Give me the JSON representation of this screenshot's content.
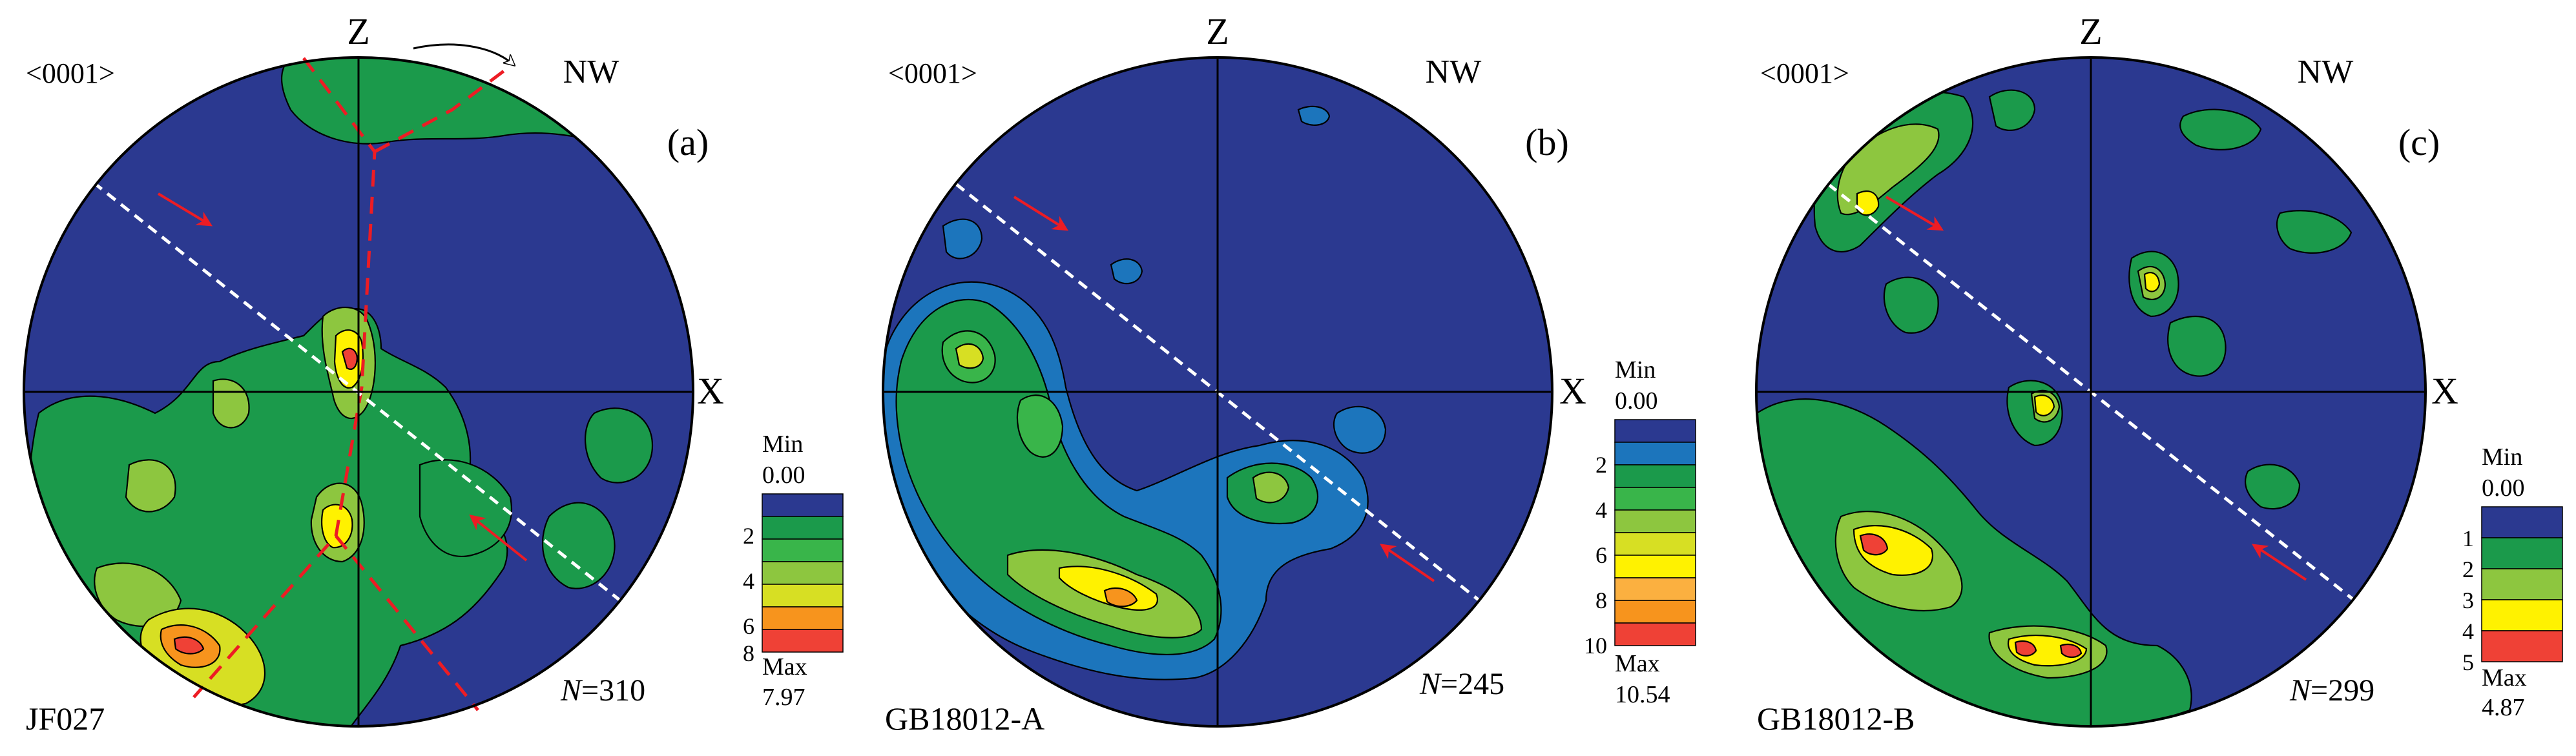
{
  "panels": [
    {
      "id": "a",
      "panel_label": "(a)",
      "crystal_axis": "<0001>",
      "axis_top": "Z",
      "axis_right": "X",
      "direction": "NW",
      "sample": "JF027",
      "n_value": "=310",
      "legend": {
        "min_label": "Min",
        "min_value": "0.00",
        "max_label": "Max",
        "max_value": "7.97",
        "ticks": [
          "2",
          "4",
          "6",
          "8"
        ],
        "colors": [
          "#2b3990",
          "#1b9a4b",
          "#39b54a",
          "#8dc63f",
          "#d7df23",
          "#f7941d",
          "#ef4136"
        ]
      },
      "has_girdle_trace": true,
      "has_top_shear_arrow": true
    },
    {
      "id": "b",
      "panel_label": "(b)",
      "crystal_axis": "<0001>",
      "axis_top": "Z",
      "axis_right": "X",
      "direction": "NW",
      "sample": "GB18012-A",
      "n_value": "=245",
      "legend": {
        "min_label": "Min",
        "min_value": "0.00",
        "max_label": "Max",
        "max_value": "10.54",
        "ticks": [
          "2",
          "4",
          "6",
          "8",
          "10"
        ],
        "colors": [
          "#2b3990",
          "#1c75bc",
          "#1b9a4b",
          "#39b54a",
          "#8dc63f",
          "#d7df23",
          "#fff200",
          "#fbb040",
          "#f7941d",
          "#ef4136"
        ]
      },
      "has_girdle_trace": false,
      "has_top_shear_arrow": false
    },
    {
      "id": "c",
      "panel_label": "(c)",
      "crystal_axis": "<0001>",
      "axis_top": "Z",
      "axis_right": "X",
      "direction": "NW",
      "sample": "GB18012-B",
      "n_value": "=299",
      "legend": {
        "min_label": "Min",
        "min_value": "0.00",
        "max_label": "Max",
        "max_value": "4.87",
        "ticks": [
          "1",
          "2",
          "3",
          "4",
          "5"
        ],
        "colors": [
          "#2b3990",
          "#1b9a4b",
          "#8dc63f",
          "#fff200",
          "#ef4136"
        ]
      },
      "has_girdle_trace": false,
      "has_top_shear_arrow": false
    }
  ],
  "n_symbol": "N",
  "colors": {
    "background": "#2b3990",
    "foliation_trace": "#ffffff",
    "shear_arrow": "#ed1c24",
    "girdle_trace": "#ed1c24",
    "outline": "#000000"
  }
}
